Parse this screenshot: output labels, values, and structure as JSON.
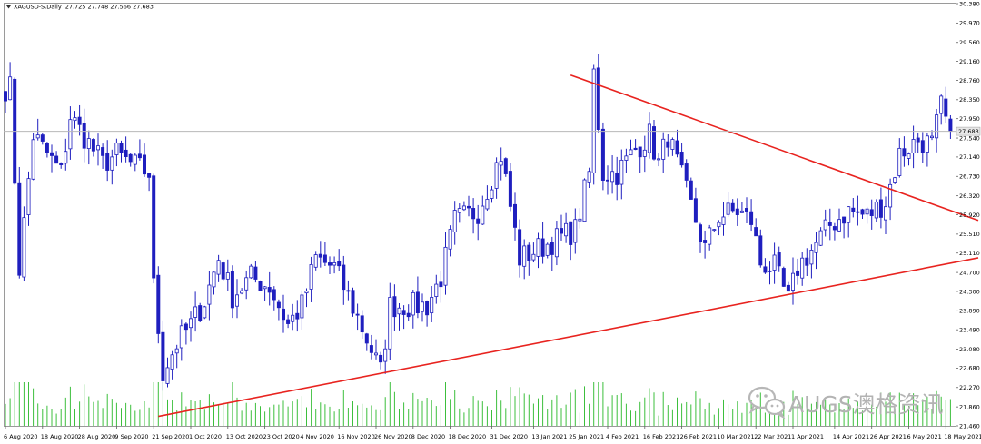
{
  "chart_data": {
    "type": "candlestick",
    "title": "XAGUSD-S,Daily",
    "ohlc_readout": "27.725 27.748 27.566 27.683",
    "current_price_label": "27.683",
    "current_price": 27.683,
    "ylim": [
      21.46,
      30.38
    ],
    "yticks": [
      "30.380",
      "29.970",
      "29.560",
      "29.160",
      "28.760",
      "28.350",
      "27.950",
      "27.540",
      "27.140",
      "26.730",
      "26.320",
      "25.920",
      "25.510",
      "25.110",
      "24.700",
      "24.300",
      "23.890",
      "23.490",
      "23.080",
      "22.680",
      "22.270",
      "21.860",
      "21.460"
    ],
    "xticks": [
      "6 Aug 2020",
      "18 Aug 2020",
      "28 Aug 2020",
      "9 Sep 2020",
      "21 Sep 2020",
      "1 Oct 2020",
      "13 Oct 2020",
      "23 Oct 2020",
      "4 Nov 2020",
      "16 Nov 2020",
      "26 Nov 2020",
      "8 Dec 2020",
      "18 Dec 2020",
      "31 Dec 2020",
      "13 Jan 2021",
      "25 Jan 2021",
      "4 Feb 2021",
      "16 Feb 2021",
      "26 Feb 2021",
      "10 Mar 2021",
      "22 Mar 2021",
      "1 Apr 2021",
      "14 Apr 2021",
      "26 Apr 2021",
      "6 May 2021",
      "18 May 2021"
    ],
    "series_anchors": [
      {
        "date": "7 Aug 2020",
        "price": 28.6
      },
      {
        "date": "11 Aug 2020",
        "price": 24.8
      },
      {
        "date": "14 Aug 2020",
        "price": 27.6
      },
      {
        "date": "24 Aug 2020",
        "price": 26.8
      },
      {
        "date": "26 Aug 2020",
        "price": 28.0
      },
      {
        "date": "4 Sep 2020",
        "price": 27.0
      },
      {
        "date": "9 Sep 2020",
        "price": 27.2
      },
      {
        "date": "14 Sep 2020",
        "price": 27.0
      },
      {
        "date": "18 Sep 2020",
        "price": 26.8
      },
      {
        "date": "21 Sep 2020",
        "price": 24.4
      },
      {
        "date": "23 Sep 2020",
        "price": 22.6
      },
      {
        "date": "28 Sep 2020",
        "price": 23.2
      },
      {
        "date": "1 Oct 2020",
        "price": 23.6
      },
      {
        "date": "6 Oct 2020",
        "price": 24.1
      },
      {
        "date": "9 Oct 2020",
        "price": 25.0
      },
      {
        "date": "14 Oct 2020",
        "price": 24.2
      },
      {
        "date": "20 Oct 2020",
        "price": 24.6
      },
      {
        "date": "26 Oct 2020",
        "price": 24.4
      },
      {
        "date": "30 Oct 2020",
        "price": 23.6
      },
      {
        "date": "4 Nov 2020",
        "price": 24.0
      },
      {
        "date": "9 Nov 2020",
        "price": 25.0
      },
      {
        "date": "13 Nov 2020",
        "price": 24.8
      },
      {
        "date": "18 Nov 2020",
        "price": 24.2
      },
      {
        "date": "24 Nov 2020",
        "price": 23.3
      },
      {
        "date": "27 Nov 2020",
        "price": 22.6
      },
      {
        "date": "1 Dec 2020",
        "price": 24.0
      },
      {
        "date": "7 Dec 2020",
        "price": 24.0
      },
      {
        "date": "11 Dec 2020",
        "price": 24.0
      },
      {
        "date": "16 Dec 2020",
        "price": 24.6
      },
      {
        "date": "21 Dec 2020",
        "price": 25.8
      },
      {
        "date": "28 Dec 2020",
        "price": 26.0
      },
      {
        "date": "4 Jan 2021",
        "price": 27.2
      },
      {
        "date": "8 Jan 2021",
        "price": 25.0
      },
      {
        "date": "14 Jan 2021",
        "price": 25.2
      },
      {
        "date": "20 Jan 2021",
        "price": 25.4
      },
      {
        "date": "26 Jan 2021",
        "price": 25.6
      },
      {
        "date": "29 Jan 2021",
        "price": 26.8
      },
      {
        "date": "1 Feb 2021",
        "price": 28.9
      },
      {
        "date": "3 Feb 2021",
        "price": 26.8
      },
      {
        "date": "8 Feb 2021",
        "price": 26.8
      },
      {
        "date": "12 Feb 2021",
        "price": 27.3
      },
      {
        "date": "17 Feb 2021",
        "price": 27.6
      },
      {
        "date": "19 Feb 2021",
        "price": 27.0
      },
      {
        "date": "23 Feb 2021",
        "price": 27.6
      },
      {
        "date": "1 Mar 2021",
        "price": 26.4
      },
      {
        "date": "5 Mar 2021",
        "price": 25.2
      },
      {
        "date": "10 Mar 2021",
        "price": 25.9
      },
      {
        "date": "16 Mar 2021",
        "price": 26.0
      },
      {
        "date": "19 Mar 2021",
        "price": 25.8
      },
      {
        "date": "23 Mar 2021",
        "price": 24.9
      },
      {
        "date": "26 Mar 2021",
        "price": 24.8
      },
      {
        "date": "31 Mar 2021",
        "price": 24.1
      },
      {
        "date": "2 Apr 2021",
        "price": 24.8
      },
      {
        "date": "8 Apr 2021",
        "price": 25.3
      },
      {
        "date": "13 Apr 2021",
        "price": 25.7
      },
      {
        "date": "19 Apr 2021",
        "price": 26.0
      },
      {
        "date": "23 Apr 2021",
        "price": 25.9
      },
      {
        "date": "29 Apr 2021",
        "price": 26.2
      },
      {
        "date": "4 May 2021",
        "price": 27.2
      },
      {
        "date": "10 May 2021",
        "price": 27.5
      },
      {
        "date": "13 May 2021",
        "price": 27.4
      },
      {
        "date": "17 May 2021",
        "price": 28.2
      },
      {
        "date": "19 May 2021",
        "price": 27.6
      }
    ],
    "trendlines": [
      {
        "name": "upper-resistance",
        "from": {
          "date": "25 Jan 2021",
          "price": 28.87
        },
        "to": {
          "date": "27 May 2021",
          "price": 25.8
        },
        "color": "#e8231f"
      },
      {
        "name": "lower-support",
        "from": {
          "date": "22 Sep 2020",
          "price": 21.66
        },
        "to": {
          "date": "27 May 2021",
          "price": 25.01
        },
        "color": "#e8231f"
      }
    ],
    "colors": {
      "background": "#ffffff",
      "candle": "#1f1fbf",
      "wick": "#1f1fbf",
      "volume": "#3cbf3c",
      "trendline": "#e8231f",
      "grid": "#cfcfcf",
      "price_label_bg": "#e8e8e8",
      "axis_text": "#000000"
    },
    "grid": false,
    "legend": "none"
  },
  "watermark": {
    "text": "AUGS澳格资讯",
    "icon": "wechat-bubbles-icon"
  }
}
